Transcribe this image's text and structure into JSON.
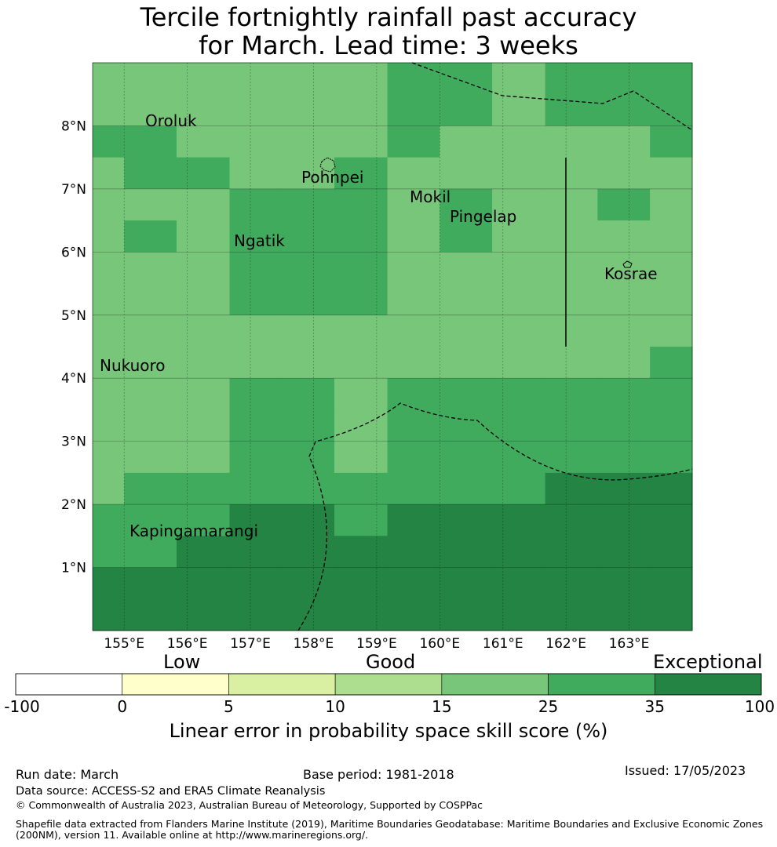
{
  "title": {
    "line1": "Tercile fortnightly rainfall past accuracy",
    "line2": "for March. Lead time: 3 weeks"
  },
  "map": {
    "lon_ticks": [
      "155°E",
      "156°E",
      "157°E",
      "158°E",
      "159°E",
      "160°E",
      "161°E",
      "162°E",
      "163°E"
    ],
    "lat_ticks": [
      "8°N",
      "7°N",
      "6°N",
      "5°N",
      "4°N",
      "3°N",
      "2°N",
      "1°N"
    ],
    "extent": {
      "lon_min": 154.5,
      "lon_max": 164.0,
      "lat_min": -0.0,
      "lat_max": 9.0
    },
    "colors": {
      "c25": "#78c679",
      "c35": "#41ab5d",
      "c100": "#238443"
    },
    "grid_rows": [
      {
        "lat_range": [
          8.5,
          9.0
        ],
        "cells": [
          "c25",
          "c25",
          "c25",
          "c25",
          "c25",
          "c25",
          "c35",
          "c35",
          "c25",
          "c35",
          "c35",
          "c35"
        ]
      },
      {
        "lat_range": [
          8.0,
          8.5
        ],
        "cells": [
          "c25",
          "c25",
          "c25",
          "c25",
          "c25",
          "c25",
          "c35",
          "c35",
          "c25",
          "c35",
          "c35",
          "c35"
        ]
      },
      {
        "lat_range": [
          7.5,
          8.0
        ],
        "cells": [
          "c35",
          "c35",
          "c25",
          "c25",
          "c25",
          "c25",
          "c35",
          "c25",
          "c25",
          "c25",
          "c25",
          "c35"
        ]
      },
      {
        "lat_range": [
          7.0,
          7.5
        ],
        "cells": [
          "c25",
          "c35",
          "c35",
          "c25",
          "c25",
          "c35",
          "c25",
          "c25",
          "c25",
          "c25",
          "c25",
          "c25"
        ]
      },
      {
        "lat_range": [
          6.5,
          7.0
        ],
        "cells": [
          "c25",
          "c25",
          "c25",
          "c35",
          "c35",
          "c35",
          "c25",
          "c35",
          "c25",
          "c25",
          "c35",
          "c25"
        ]
      },
      {
        "lat_range": [
          6.0,
          6.5
        ],
        "cells": [
          "c25",
          "c35",
          "c25",
          "c35",
          "c35",
          "c35",
          "c25",
          "c35",
          "c25",
          "c25",
          "c25",
          "c25"
        ]
      },
      {
        "lat_range": [
          5.5,
          6.0
        ],
        "cells": [
          "c25",
          "c25",
          "c25",
          "c35",
          "c35",
          "c35",
          "c25",
          "c25",
          "c25",
          "c25",
          "c25",
          "c25"
        ]
      },
      {
        "lat_range": [
          5.0,
          5.5
        ],
        "cells": [
          "c25",
          "c25",
          "c25",
          "c35",
          "c35",
          "c35",
          "c25",
          "c25",
          "c25",
          "c25",
          "c25",
          "c25"
        ]
      },
      {
        "lat_range": [
          4.5,
          5.0
        ],
        "cells": [
          "c25",
          "c25",
          "c25",
          "c25",
          "c25",
          "c25",
          "c25",
          "c25",
          "c25",
          "c25",
          "c25",
          "c25"
        ]
      },
      {
        "lat_range": [
          4.0,
          4.5
        ],
        "cells": [
          "c25",
          "c25",
          "c25",
          "c25",
          "c25",
          "c25",
          "c25",
          "c25",
          "c25",
          "c25",
          "c25",
          "c35"
        ]
      },
      {
        "lat_range": [
          3.5,
          4.0
        ],
        "cells": [
          "c25",
          "c25",
          "c25",
          "c35",
          "c35",
          "c25",
          "c35",
          "c35",
          "c35",
          "c35",
          "c35",
          "c35"
        ]
      },
      {
        "lat_range": [
          3.0,
          3.5
        ],
        "cells": [
          "c25",
          "c25",
          "c25",
          "c35",
          "c35",
          "c25",
          "c35",
          "c35",
          "c35",
          "c35",
          "c35",
          "c35"
        ]
      },
      {
        "lat_range": [
          2.5,
          3.0
        ],
        "cells": [
          "c25",
          "c25",
          "c25",
          "c35",
          "c35",
          "c25",
          "c35",
          "c35",
          "c35",
          "c35",
          "c35",
          "c35"
        ]
      },
      {
        "lat_range": [
          2.0,
          2.5
        ],
        "cells": [
          "c25",
          "c35",
          "c35",
          "c35",
          "c35",
          "c35",
          "c35",
          "c35",
          "c35",
          "c100",
          "c100",
          "c100"
        ]
      },
      {
        "lat_range": [
          1.5,
          2.0
        ],
        "cells": [
          "c35",
          "c35",
          "c35",
          "c100",
          "c100",
          "c35",
          "c100",
          "c100",
          "c100",
          "c100",
          "c100",
          "c100"
        ]
      },
      {
        "lat_range": [
          1.0,
          1.5
        ],
        "cells": [
          "c35",
          "c35",
          "c100",
          "c100",
          "c100",
          "c100",
          "c100",
          "c100",
          "c100",
          "c100",
          "c100",
          "c100"
        ]
      },
      {
        "lat_range": [
          0.5,
          1.0
        ],
        "cells": [
          "c100",
          "c100",
          "c100",
          "c100",
          "c100",
          "c100",
          "c100",
          "c100",
          "c100",
          "c100",
          "c100",
          "c100"
        ]
      },
      {
        "lat_range": [
          0.0,
          0.5
        ],
        "cells": [
          "c100",
          "c100",
          "c100",
          "c100",
          "c100",
          "c100",
          "c100",
          "c100",
          "c100",
          "c100",
          "c100",
          "c100"
        ]
      }
    ],
    "places": [
      {
        "name": "Oroluk",
        "lon": 155.3,
        "lat": 7.6
      },
      {
        "name": "Pohnpei",
        "lon": 158.3,
        "lat": 6.8
      },
      {
        "name": "Mokil",
        "lon": 159.8,
        "lat": 6.5
      },
      {
        "name": "Pingelap",
        "lon": 160.7,
        "lat": 6.2
      },
      {
        "name": "Ngatik",
        "lon": 157.2,
        "lat": 5.8
      },
      {
        "name": "Kosrae",
        "lon": 163.0,
        "lat": 5.3
      },
      {
        "name": "Nukuoro",
        "lon": 154.9,
        "lat": 3.9
      },
      {
        "name": "Kapingamarangi",
        "lon": 155.3,
        "lat": 1.1
      }
    ]
  },
  "colorbar": {
    "category_labels": [
      "Low",
      "Good",
      "Exceptional"
    ],
    "ticks": [
      "-100",
      "0",
      "5",
      "10",
      "15",
      "25",
      "35",
      "100"
    ],
    "colors": [
      "#ffffff",
      "#ffffcc",
      "#d9f0a3",
      "#addd8e",
      "#78c679",
      "#41ab5d",
      "#238443"
    ],
    "title": "Linear error in probability space skill score (%)"
  },
  "footer": {
    "run_date": "Run date: March",
    "base_period": "Base period: 1981-2018",
    "issued": "Issued: 17/05/2023",
    "data_source": "Data source: ACCESS-S2 and ERA5 Climate Reanalysis",
    "copyright": "© Commonwealth of Australia 2023, Australian Bureau of Meteorology, Supported by COSPPac",
    "shapefile_line1": "Shapefile data extracted from Flanders Marine Institute (2019), Maritime Boundaries Geodatabase: Maritime Boundaries and Exclusive Economic Zones",
    "shapefile_line2": "(200NM), version 11. Available online at http://www.marineregions.org/."
  }
}
